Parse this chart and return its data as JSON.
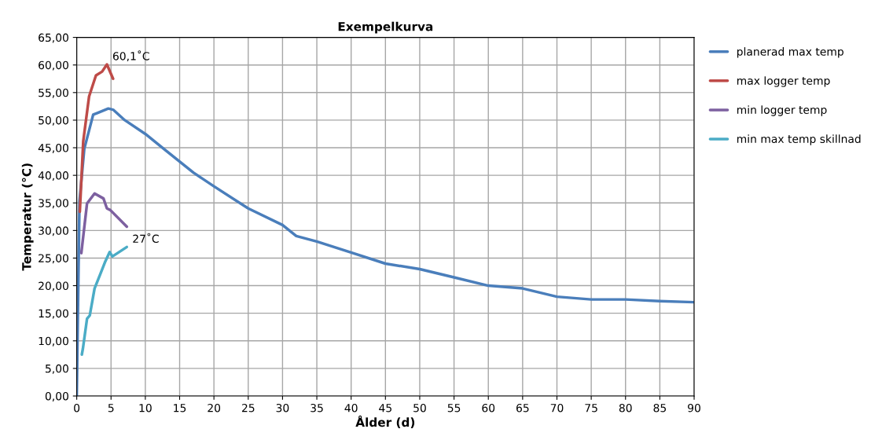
{
  "chart_data": {
    "type": "line",
    "title": "Exempelkurva",
    "xlabel": "Ålder (d)",
    "ylabel": "Temperatur (°C)",
    "xlim": [
      0,
      90
    ],
    "xticks": [
      0,
      5,
      10,
      15,
      20,
      25,
      30,
      35,
      40,
      45,
      50,
      55,
      60,
      65,
      70,
      75,
      80,
      85,
      90
    ],
    "ylim": [
      0,
      65
    ],
    "yticks": [
      {
        "value": 0,
        "label": "0,00"
      },
      {
        "value": 5,
        "label": "5,00"
      },
      {
        "value": 10,
        "label": "10,00"
      },
      {
        "value": 15,
        "label": "15,00"
      },
      {
        "value": 20,
        "label": "20,00"
      },
      {
        "value": 25,
        "label": "25,00"
      },
      {
        "value": 30,
        "label": "30,00"
      },
      {
        "value": 35,
        "label": "35,00"
      },
      {
        "value": 40,
        "label": "40,00"
      },
      {
        "value": 45,
        "label": "45,00"
      },
      {
        "value": 50,
        "label": "50,00"
      },
      {
        "value": 55,
        "label": "55,00"
      },
      {
        "value": 60,
        "label": "60,00"
      },
      {
        "value": 65,
        "label": "65,00"
      }
    ],
    "grid": true,
    "legend": "right",
    "marker": "none",
    "line_style": "solid",
    "series": [
      {
        "name": "planerad max temp",
        "color": "#4a7ebb",
        "x": [
          0,
          0.4,
          1.1,
          2.4,
          3,
          4.6,
          5.3,
          7,
          10,
          12.5,
          15,
          17,
          20,
          25,
          30,
          32,
          35,
          40,
          45,
          50,
          55,
          60,
          65,
          70,
          75,
          80,
          85,
          90
        ],
        "values": [
          0,
          35.3,
          44.8,
          51,
          51.3,
          52.1,
          51.9,
          50,
          47.5,
          45,
          42.5,
          40.5,
          38,
          34,
          31,
          29,
          28,
          26,
          24,
          23,
          21.5,
          20,
          19.5,
          18,
          17.5,
          17.5,
          17.2,
          17
        ]
      },
      {
        "name": "max logger temp",
        "color": "#be4b48",
        "x": [
          0.45,
          0.95,
          1.8,
          2.8,
          3.7,
          4.4,
          5.3
        ],
        "values": [
          33.4,
          46.2,
          54.3,
          58.1,
          58.8,
          60.1,
          57.5
        ]
      },
      {
        "name": "min logger temp",
        "color": "#7d60a0",
        "x": [
          0.67,
          1.5,
          2.6,
          3.9,
          4.4,
          4.9,
          7.3
        ],
        "values": [
          25.9,
          34.9,
          36.7,
          35.8,
          34,
          33.7,
          30.7
        ]
      },
      {
        "name": "min max temp skillnad",
        "color": "#4bacc6",
        "x": [
          0.74,
          0.9,
          1.5,
          1.9,
          2.6,
          3.4,
          4.1,
          4.8,
          5.2,
          7.3
        ],
        "values": [
          7.5,
          8.6,
          14,
          14.6,
          19.5,
          22,
          24.2,
          26.1,
          25.3,
          27
        ]
      }
    ],
    "annotations": [
      {
        "text": "60,1˚C",
        "x": 4.4,
        "y": 60.1
      },
      {
        "text": "27˚C",
        "x": 7.3,
        "y": 27
      }
    ]
  }
}
